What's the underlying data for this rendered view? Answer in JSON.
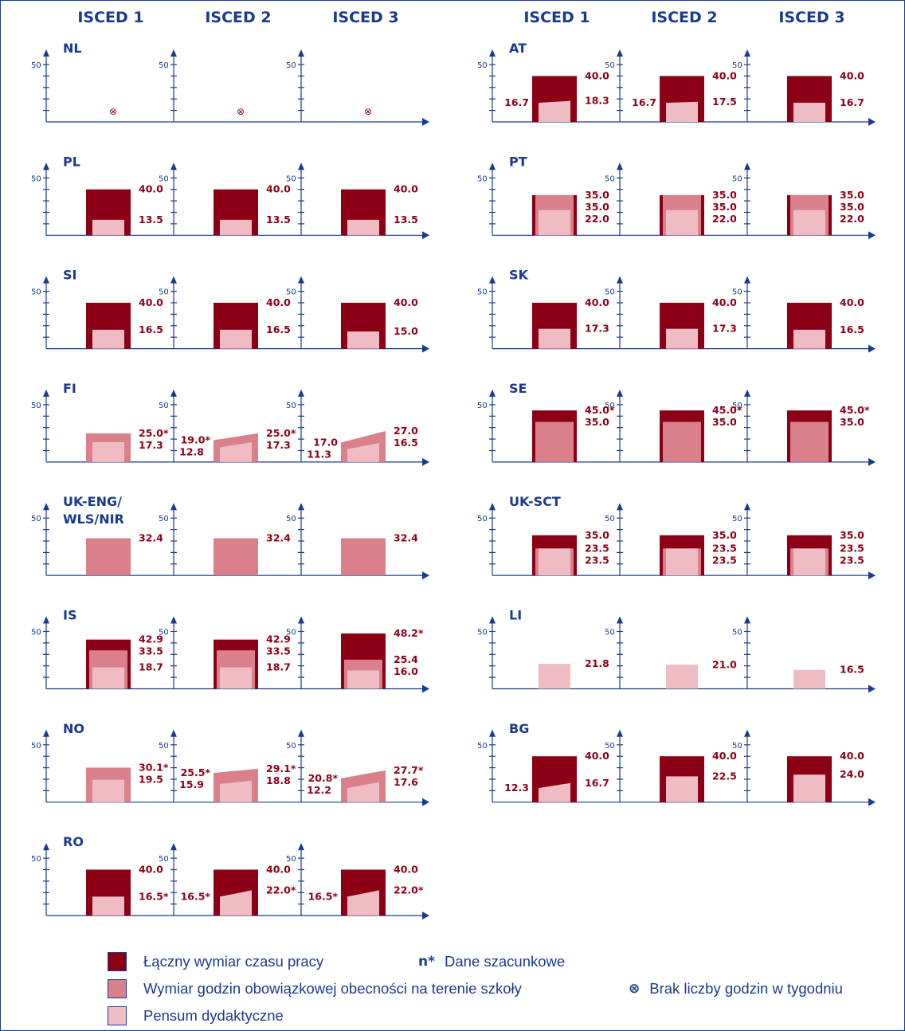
{
  "colors": {
    "total": "#8b0015",
    "presence": "#d9808b",
    "teaching": "#f0bcc3",
    "axis": "#1a3a8f",
    "text_value": "#8b0015"
  },
  "headers": {
    "left": [
      "ISCED 1",
      "ISCED 2",
      "ISCED 3"
    ],
    "right": [
      "ISCED 1",
      "ISCED 2",
      "ISCED 3"
    ]
  },
  "legend": {
    "total": "Łączny wymiar czasu pracy",
    "presence": "Wymiar godzin obowiązkowej obecności na terenie szkoły",
    "teaching": "Pensum dydaktyczne",
    "estimate_mark": "n*",
    "estimate": "Dane szacunkowe",
    "nodata_mark": "⊗",
    "nodata": "Brak liczby godzin w tygodniu"
  },
  "chart_data": {
    "type": "bar",
    "y_axis_max_label": "50",
    "ylim": [
      0,
      50
    ],
    "columns": [
      "ISCED 1",
      "ISCED 2",
      "ISCED 3"
    ],
    "countries": [
      {
        "code": "NL",
        "panel": "left",
        "row": 0,
        "cells": [
          {
            "nodata": true
          },
          {
            "nodata": true
          },
          {
            "nodata": true
          }
        ]
      },
      {
        "code": "PL",
        "panel": "left",
        "row": 1,
        "cells": [
          {
            "total": 40.0,
            "teaching": 13.5,
            "labels": {
              "total": "40.0",
              "teaching": "13.5"
            }
          },
          {
            "total": 40.0,
            "teaching": 13.5,
            "labels": {
              "total": "40.0",
              "teaching": "13.5"
            }
          },
          {
            "total": 40.0,
            "teaching": 13.5,
            "labels": {
              "total": "40.0",
              "teaching": "13.5"
            }
          }
        ]
      },
      {
        "code": "SI",
        "panel": "left",
        "row": 2,
        "cells": [
          {
            "total": 40.0,
            "teaching": 16.5,
            "labels": {
              "total": "40.0",
              "teaching": "16.5"
            }
          },
          {
            "total": 40.0,
            "teaching": 16.5,
            "labels": {
              "total": "40.0",
              "teaching": "16.5"
            }
          },
          {
            "total": 40.0,
            "teaching": 15.0,
            "labels": {
              "total": "40.0",
              "teaching": "15.0"
            }
          }
        ]
      },
      {
        "code": "FI",
        "panel": "left",
        "row": 3,
        "cells": [
          {
            "presence": 25.0,
            "teaching": 17.3,
            "labels": {
              "presence": "25.0*",
              "teaching": "17.3"
            }
          },
          {
            "presence_range": [
              19.0,
              25.0
            ],
            "teaching_range": [
              12.8,
              17.3
            ],
            "labels": {
              "presence_min": "19.0*",
              "teaching_min": "12.8",
              "presence": "25.0*",
              "teaching": "17.3"
            }
          },
          {
            "presence_range": [
              17.0,
              27.0
            ],
            "teaching_range": [
              11.3,
              16.5
            ],
            "labels": {
              "presence_min": "17.0",
              "teaching_min": "11.3",
              "presence": "27.0",
              "teaching": "16.5"
            }
          }
        ]
      },
      {
        "code": "UK-ENG/\nWLS/NIR",
        "panel": "left",
        "row": 4,
        "cells": [
          {
            "presence": 32.4,
            "labels": {
              "presence": "32.4"
            }
          },
          {
            "presence": 32.4,
            "labels": {
              "presence": "32.4"
            }
          },
          {
            "presence": 32.4,
            "labels": {
              "presence": "32.4"
            }
          }
        ]
      },
      {
        "code": "IS",
        "panel": "left",
        "row": 5,
        "cells": [
          {
            "total": 42.9,
            "presence": 33.5,
            "teaching": 18.7,
            "labels": {
              "total": "42.9",
              "presence": "33.5",
              "teaching": "18.7"
            }
          },
          {
            "total": 42.9,
            "presence": 33.5,
            "teaching": 18.7,
            "labels": {
              "total": "42.9",
              "presence": "33.5",
              "teaching": "18.7"
            }
          },
          {
            "total": 48.2,
            "presence": 25.4,
            "teaching": 16.0,
            "labels": {
              "total": "48.2*",
              "presence": "25.4",
              "teaching": "16.0"
            }
          }
        ]
      },
      {
        "code": "NO",
        "panel": "left",
        "row": 6,
        "cells": [
          {
            "presence": 30.1,
            "teaching": 19.5,
            "labels": {
              "presence": "30.1*",
              "teaching": "19.5"
            }
          },
          {
            "presence_range": [
              25.5,
              29.1
            ],
            "teaching_range": [
              15.9,
              18.8
            ],
            "labels": {
              "presence_min": "25.5*",
              "teaching_min": "15.9",
              "presence": "29.1*",
              "teaching": "18.8"
            }
          },
          {
            "presence_range": [
              20.8,
              27.7
            ],
            "teaching_range": [
              12.2,
              17.6
            ],
            "labels": {
              "presence_min": "20.8*",
              "teaching_min": "12.2",
              "presence": "27.7*",
              "teaching": "17.6"
            }
          }
        ]
      },
      {
        "code": "RO",
        "panel": "left",
        "row": 7,
        "cells": [
          {
            "total": 40.0,
            "teaching": 16.5,
            "labels": {
              "total": "40.0",
              "teaching": "16.5*"
            }
          },
          {
            "total": 40.0,
            "teaching_range": [
              16.5,
              22.0
            ],
            "labels": {
              "total": "40.0",
              "teaching_min": "16.5*",
              "teaching": "22.0*"
            }
          },
          {
            "total": 40.0,
            "teaching_range": [
              16.5,
              22.0
            ],
            "labels": {
              "total": "40.0",
              "teaching_min": "16.5*",
              "teaching": "22.0*"
            }
          }
        ]
      },
      {
        "code": "AT",
        "panel": "right",
        "row": 0,
        "cells": [
          {
            "total": 40.0,
            "teaching_range": [
              16.7,
              18.3
            ],
            "labels": {
              "total": "40.0",
              "teaching_min": "16.7",
              "teaching": "18.3"
            }
          },
          {
            "total": 40.0,
            "teaching_range": [
              16.7,
              17.5
            ],
            "labels": {
              "total": "40.0",
              "teaching_min": "16.7",
              "teaching": "17.5"
            }
          },
          {
            "total": 40.0,
            "teaching": 16.7,
            "labels": {
              "total": "40.0",
              "teaching": "16.7"
            }
          }
        ]
      },
      {
        "code": "PT",
        "panel": "right",
        "row": 1,
        "cells": [
          {
            "total": 35.0,
            "presence": 35.0,
            "teaching": 22.0,
            "labels": {
              "total": "35.0",
              "presence": "35.0",
              "teaching": "22.0"
            }
          },
          {
            "total": 35.0,
            "presence": 35.0,
            "teaching": 22.0,
            "labels": {
              "total": "35.0",
              "presence": "35.0",
              "teaching": "22.0"
            }
          },
          {
            "total": 35.0,
            "presence": 35.0,
            "teaching": 22.0,
            "labels": {
              "total": "35.0",
              "presence": "35.0",
              "teaching": "22.0"
            }
          }
        ]
      },
      {
        "code": "SK",
        "panel": "right",
        "row": 2,
        "cells": [
          {
            "total": 40.0,
            "teaching": 17.3,
            "labels": {
              "total": "40.0",
              "teaching": "17.3"
            }
          },
          {
            "total": 40.0,
            "teaching": 17.3,
            "labels": {
              "total": "40.0",
              "teaching": "17.3"
            }
          },
          {
            "total": 40.0,
            "teaching": 16.5,
            "labels": {
              "total": "40.0",
              "teaching": "16.5"
            }
          }
        ]
      },
      {
        "code": "SE",
        "panel": "right",
        "row": 3,
        "cells": [
          {
            "total": 45.0,
            "presence": 35.0,
            "labels": {
              "total": "45.0*",
              "presence": "35.0"
            }
          },
          {
            "total": 45.0,
            "presence": 35.0,
            "labels": {
              "total": "45.0*",
              "presence": "35.0"
            }
          },
          {
            "total": 45.0,
            "presence": 35.0,
            "labels": {
              "total": "45.0*",
              "presence": "35.0"
            }
          }
        ]
      },
      {
        "code": "UK-SCT",
        "panel": "right",
        "row": 4,
        "cells": [
          {
            "total": 35.0,
            "presence": 23.5,
            "teaching": 23.5,
            "labels": {
              "total": "35.0",
              "presence": "23.5",
              "teaching": "23.5"
            }
          },
          {
            "total": 35.0,
            "presence": 23.5,
            "teaching": 23.5,
            "labels": {
              "total": "35.0",
              "presence": "23.5",
              "teaching": "23.5"
            }
          },
          {
            "total": 35.0,
            "presence": 23.5,
            "teaching": 23.5,
            "labels": {
              "total": "35.0",
              "presence": "23.5",
              "teaching": "23.5"
            }
          }
        ]
      },
      {
        "code": "LI",
        "panel": "right",
        "row": 5,
        "cells": [
          {
            "teaching": 21.8,
            "labels": {
              "teaching": "21.8"
            }
          },
          {
            "teaching": 21.0,
            "labels": {
              "teaching": "21.0"
            }
          },
          {
            "teaching": 16.5,
            "labels": {
              "teaching": "16.5"
            }
          }
        ]
      },
      {
        "code": "BG",
        "panel": "right",
        "row": 6,
        "cells": [
          {
            "total": 40.0,
            "teaching_range": [
              12.3,
              16.7
            ],
            "labels": {
              "total": "40.0",
              "teaching_min": "12.3",
              "teaching": "16.7"
            }
          },
          {
            "total": 40.0,
            "teaching": 22.5,
            "labels": {
              "total": "40.0",
              "teaching": "22.5"
            }
          },
          {
            "total": 40.0,
            "teaching": 24.0,
            "labels": {
              "total": "40.0",
              "teaching": "24.0"
            }
          }
        ]
      }
    ]
  }
}
